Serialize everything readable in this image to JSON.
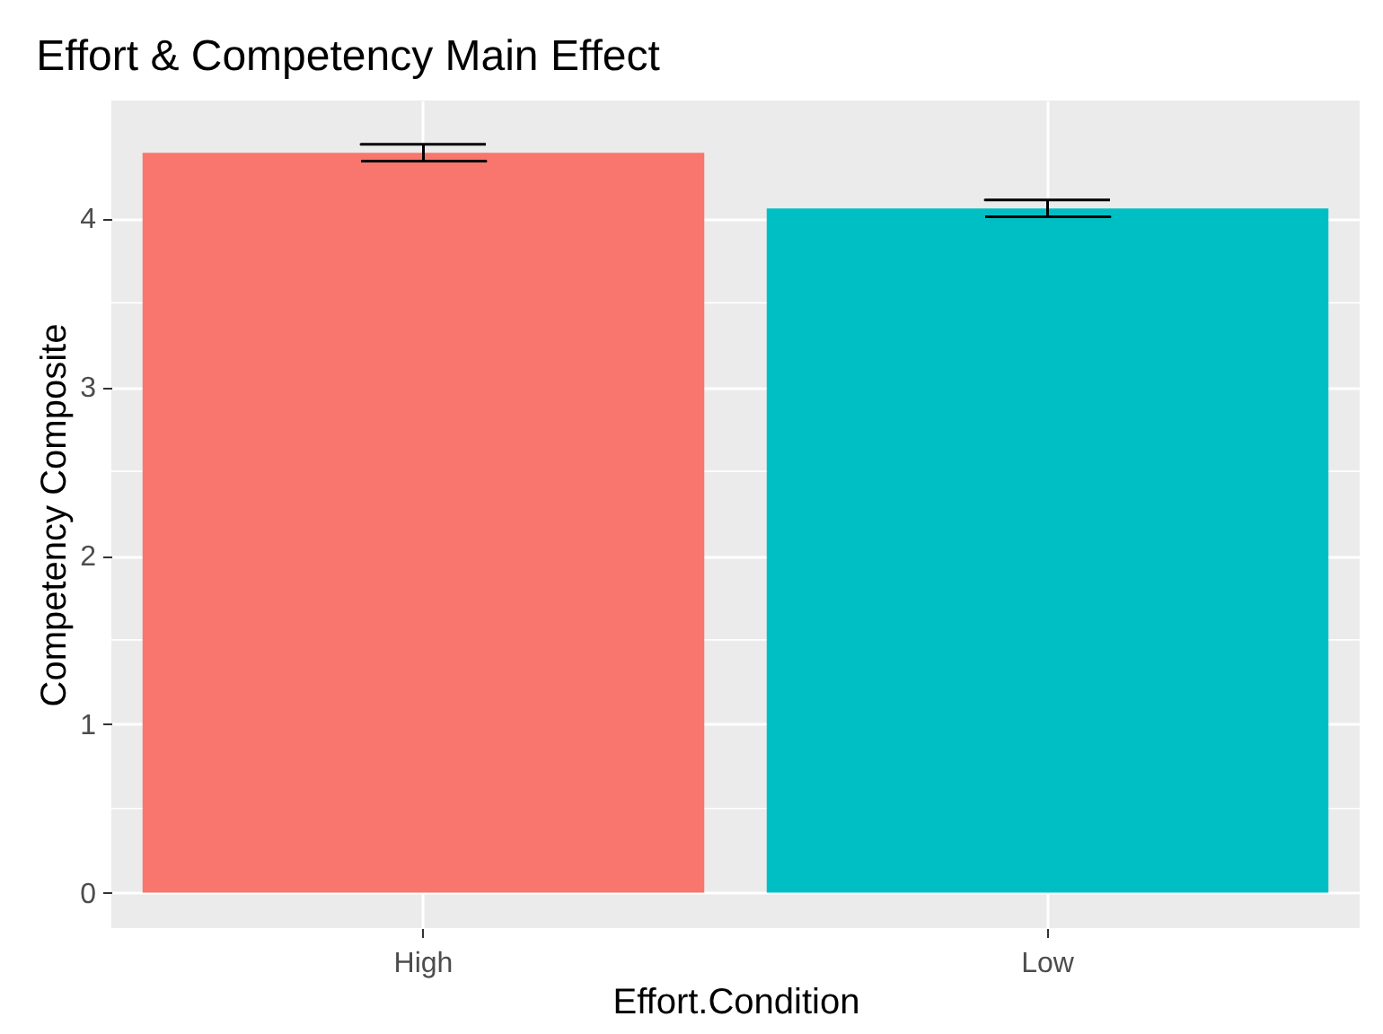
{
  "chart_data": {
    "type": "bar",
    "title": "Effort & Competency Main Effect",
    "xlabel": "Effort.Condition",
    "ylabel": "Competency Composite",
    "categories": [
      "High",
      "Low"
    ],
    "values": [
      4.39,
      4.06
    ],
    "colors": [
      "#f8766d",
      "#00bfc4"
    ],
    "errors": [
      0.05,
      0.05
    ],
    "ylim": [
      -0.21,
      4.7
    ],
    "yticks": [
      0,
      1,
      2,
      3,
      4
    ],
    "grid": true
  }
}
